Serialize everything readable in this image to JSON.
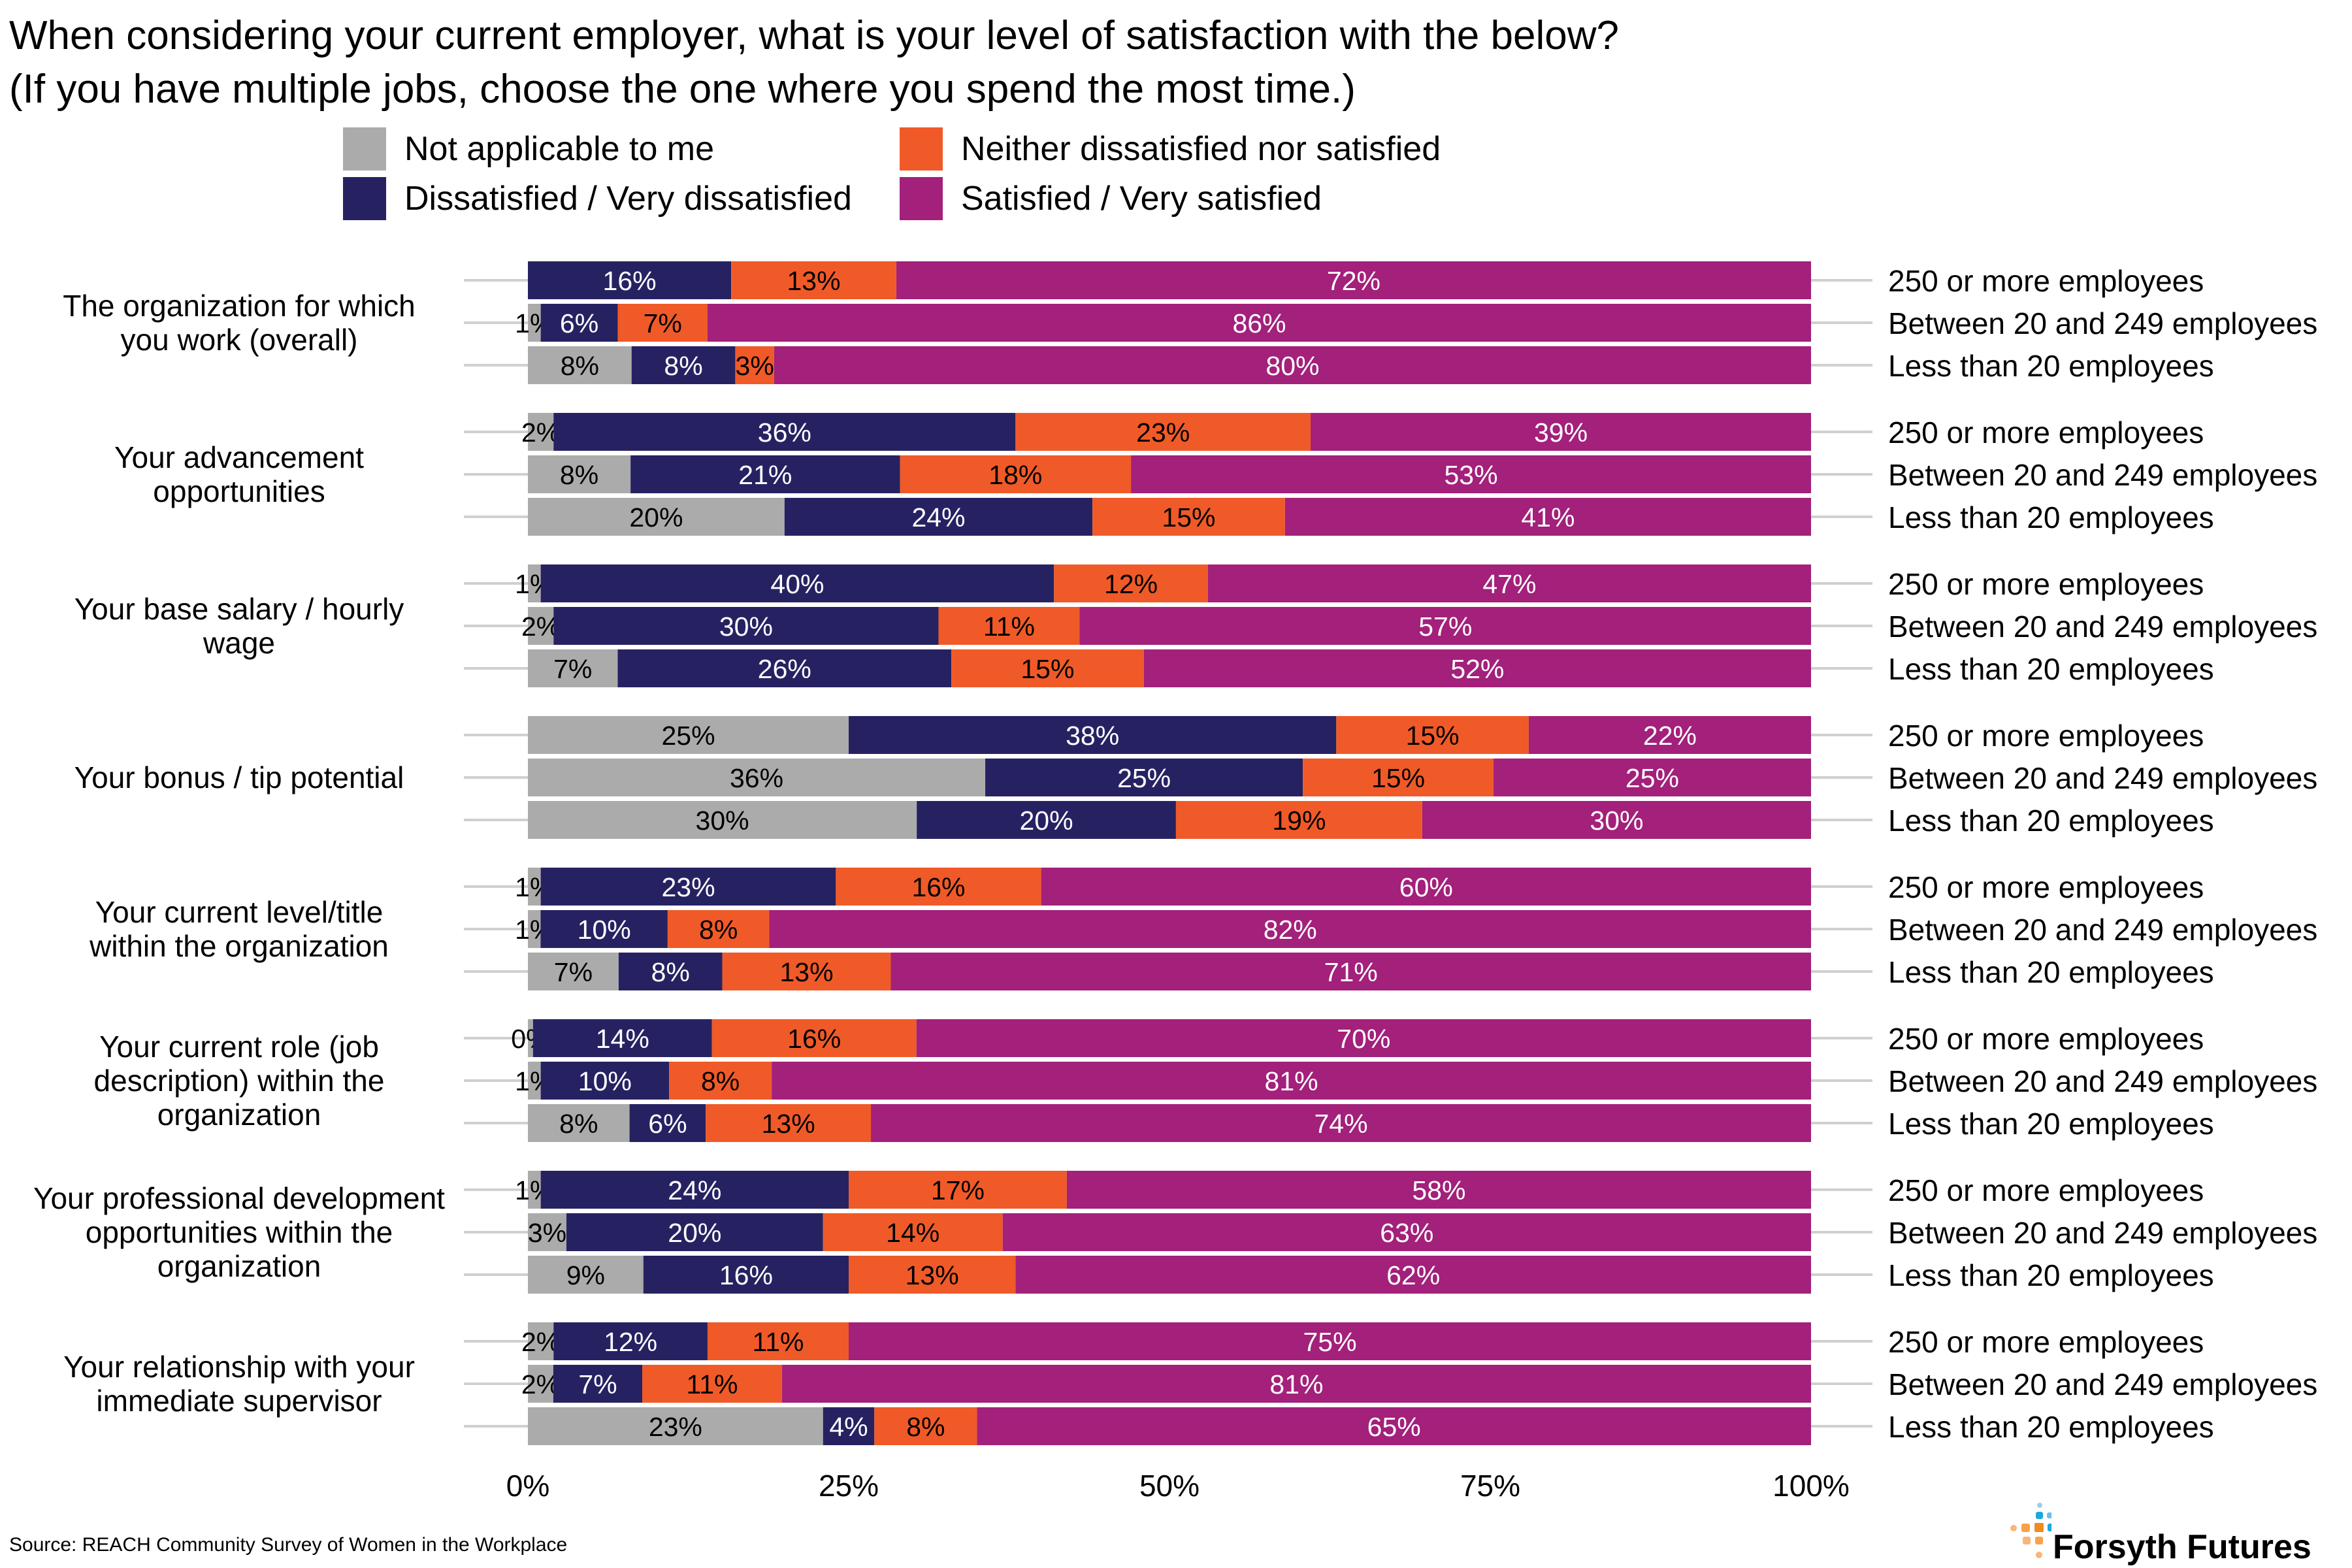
{
  "chart_data": {
    "type": "bar",
    "orientation": "horizontal-stacked-100",
    "title": [
      "When considering your current employer, what is your level of satisfaction with the below?",
      "(If you have multiple jobs, choose the one where you spend the most time.)"
    ],
    "xlabel": "",
    "ylabel": "",
    "xlim": [
      0,
      100
    ],
    "x_ticks": [
      "0%",
      "25%",
      "50%",
      "75%",
      "100%"
    ],
    "legend": {
      "placement": "top",
      "entries": [
        {
          "name": "Not applicable to me",
          "color": "#ABABAB"
        },
        {
          "name": "Neither dissatisfied nor satisfied",
          "color": "#F05A28"
        },
        {
          "name": "Dissatisfied / Very dissatisfied",
          "color": "#262262"
        },
        {
          "name": "Satisfied / Very satisfied",
          "color": "#A3207B"
        }
      ]
    },
    "stack_order": [
      "Not applicable to me",
      "Dissatisfied / Very dissatisfied",
      "Neither dissatisfied nor satisfied",
      "Satisfied / Very satisfied"
    ],
    "segment_colors": [
      "#ABABAB",
      "#262262",
      "#F05A28",
      "#A3207B"
    ],
    "label_colors": [
      "#000000",
      "#FFFFFF",
      "#000000",
      "#FFFFFF"
    ],
    "groups": [
      {
        "label": "The organization for which you work (overall)",
        "rows": [
          {
            "size": "250 or more employees",
            "values": [
              0,
              16,
              13,
              72
            ]
          },
          {
            "size": "Between 20 and 249 employees",
            "values": [
              1,
              6,
              7,
              86
            ]
          },
          {
            "size": "Less than 20 employees",
            "values": [
              8,
              8,
              3,
              80
            ]
          }
        ]
      },
      {
        "label": "Your advancement opportunities",
        "rows": [
          {
            "size": "250 or more employees",
            "values": [
              2,
              36,
              23,
              39
            ]
          },
          {
            "size": "Between 20 and 249 employees",
            "values": [
              8,
              21,
              18,
              53
            ]
          },
          {
            "size": "Less than 20 employees",
            "values": [
              20,
              24,
              15,
              41
            ]
          }
        ]
      },
      {
        "label": "Your base salary / hourly wage",
        "rows": [
          {
            "size": "250 or more employees",
            "values": [
              1,
              40,
              12,
              47
            ]
          },
          {
            "size": "Between 20 and 249 employees",
            "values": [
              2,
              30,
              11,
              57
            ]
          },
          {
            "size": "Less than 20 employees",
            "values": [
              7,
              26,
              15,
              52
            ]
          }
        ]
      },
      {
        "label": "Your bonus / tip potential",
        "rows": [
          {
            "size": "250 or more employees",
            "values": [
              25,
              38,
              15,
              22
            ]
          },
          {
            "size": "Between 20 and 249 employees",
            "values": [
              36,
              25,
              15,
              25
            ]
          },
          {
            "size": "Less than 20 employees",
            "values": [
              30,
              20,
              19,
              30
            ]
          }
        ]
      },
      {
        "label": "Your current level/title within the organization",
        "rows": [
          {
            "size": "250 or more employees",
            "values": [
              1,
              23,
              16,
              60
            ]
          },
          {
            "size": "Between 20 and 249 employees",
            "values": [
              1,
              10,
              8,
              82
            ]
          },
          {
            "size": "Less than 20 employees",
            "values": [
              7,
              8,
              13,
              71
            ]
          }
        ]
      },
      {
        "label": "Your current role (job description) within the organization",
        "rows": [
          {
            "size": "250 or more employees",
            "values": [
              0.4,
              14,
              16,
              70
            ],
            "labels": [
              "0%",
              "14%",
              "16%",
              "70%"
            ]
          },
          {
            "size": "Between 20 and 249 employees",
            "values": [
              1,
              10,
              8,
              81
            ]
          },
          {
            "size": "Less than 20 employees",
            "values": [
              8,
              6,
              13,
              74
            ]
          }
        ]
      },
      {
        "label": "Your professional development opportunities within the organization",
        "rows": [
          {
            "size": "250 or more employees",
            "values": [
              1,
              24,
              17,
              58
            ]
          },
          {
            "size": "Between 20 and 249 employees",
            "values": [
              3,
              20,
              14,
              63
            ]
          },
          {
            "size": "Less than 20 employees",
            "values": [
              9,
              16,
              13,
              62
            ]
          }
        ]
      },
      {
        "label": "Your relationship with your immediate supervisor",
        "rows": [
          {
            "size": "250 or more employees",
            "values": [
              2,
              12,
              11,
              75
            ]
          },
          {
            "size": "Between 20 and 249 employees",
            "values": [
              2,
              7,
              11,
              81
            ]
          },
          {
            "size": "Less than 20 employees",
            "values": [
              23,
              4,
              8,
              65
            ]
          }
        ]
      }
    ],
    "group_label_lines": [
      [
        "The organization for which",
        "you work (overall)"
      ],
      [
        "Your advancement",
        "opportunities"
      ],
      [
        "Your base salary / hourly",
        "wage"
      ],
      [
        "Your bonus / tip potential"
      ],
      [
        "Your current level/title",
        "within the organization"
      ],
      [
        "Your current role (job",
        "description) within the",
        "organization"
      ],
      [
        "Your professional development",
        "opportunities within the",
        "organization"
      ],
      [
        "Your relationship with your",
        "immediate supervisor"
      ]
    ]
  },
  "footer": {
    "source": "Source: REACH Community Survey of Women in the Workplace",
    "logo_text": "Forsyth Futures"
  }
}
